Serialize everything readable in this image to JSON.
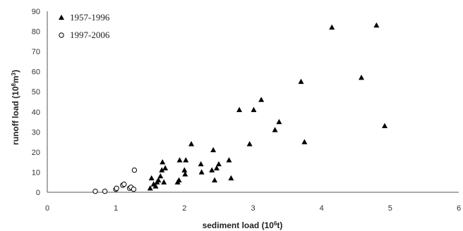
{
  "chart_data": {
    "type": "scatter",
    "title": "",
    "xlabel": {
      "prefix": "sediment load (10",
      "sup": "6",
      "suffix": "t)"
    },
    "ylabel": {
      "prefix": "runoff load (10",
      "sup": "8",
      "suffix": "m",
      "sup2": "3",
      "suffix2": ")"
    },
    "xlim": [
      0,
      6
    ],
    "ylim": [
      0,
      90
    ],
    "xticks": [
      0,
      1,
      2,
      3,
      4,
      5,
      6
    ],
    "yticks": [
      0,
      10,
      20,
      30,
      40,
      50,
      60,
      70,
      80,
      90
    ],
    "grid": false,
    "legend_position": "top-left",
    "series": [
      {
        "name": "1957-1996",
        "marker": "triangle",
        "color": "#000000",
        "points": [
          [
            1.5,
            2
          ],
          [
            1.52,
            7
          ],
          [
            1.55,
            4
          ],
          [
            1.58,
            3
          ],
          [
            1.6,
            5
          ],
          [
            1.62,
            6
          ],
          [
            1.65,
            8
          ],
          [
            1.67,
            11
          ],
          [
            1.68,
            15
          ],
          [
            1.7,
            5
          ],
          [
            1.72,
            12
          ],
          [
            1.9,
            5
          ],
          [
            1.92,
            6
          ],
          [
            1.93,
            16
          ],
          [
            2.0,
            11
          ],
          [
            2.01,
            9
          ],
          [
            2.02,
            16
          ],
          [
            2.1,
            24
          ],
          [
            2.25,
            10
          ],
          [
            2.24,
            14
          ],
          [
            2.4,
            11
          ],
          [
            2.42,
            21
          ],
          [
            2.44,
            6
          ],
          [
            2.47,
            12
          ],
          [
            2.5,
            14
          ],
          [
            2.65,
            16
          ],
          [
            2.68,
            7
          ],
          [
            2.8,
            41
          ],
          [
            2.95,
            24
          ],
          [
            3.01,
            41
          ],
          [
            3.12,
            46
          ],
          [
            3.32,
            31
          ],
          [
            3.38,
            35
          ],
          [
            3.7,
            55
          ],
          [
            3.75,
            25
          ],
          [
            4.15,
            82
          ],
          [
            4.58,
            57
          ],
          [
            4.8,
            83
          ],
          [
            4.92,
            33
          ]
        ]
      },
      {
        "name": "1997-2006",
        "marker": "circle-open",
        "color": "#000000",
        "points": [
          [
            0.7,
            0.5
          ],
          [
            0.84,
            0.5
          ],
          [
            1.0,
            1.5
          ],
          [
            1.01,
            2
          ],
          [
            1.1,
            3.5
          ],
          [
            1.12,
            4
          ],
          [
            1.2,
            2
          ],
          [
            1.22,
            2.5
          ],
          [
            1.26,
            1.5
          ],
          [
            1.27,
            11
          ]
        ]
      }
    ]
  }
}
